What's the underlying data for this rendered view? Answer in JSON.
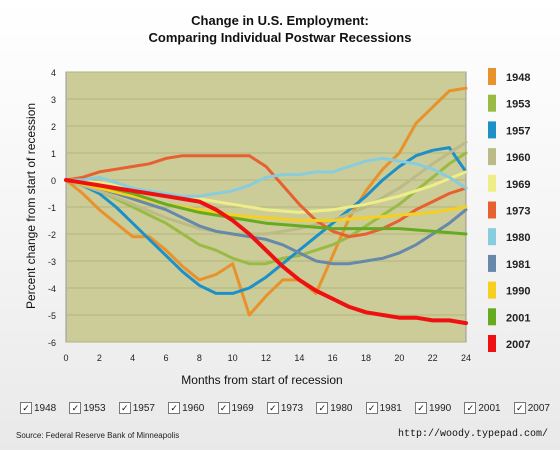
{
  "chart_data": {
    "type": "line",
    "title": "Change in U.S. Employment:",
    "subtitle": "Comparing Individual Postwar Recessions",
    "xlabel": "Months from start of recession",
    "ylabel": "Percent change from start of recession",
    "xlim": [
      0,
      24
    ],
    "ylim": [
      -6,
      4
    ],
    "xticks": [
      "0",
      "2",
      "4",
      "6",
      "8",
      "10",
      "12",
      "14",
      "16",
      "18",
      "20",
      "22",
      "24"
    ],
    "yticks": [
      "4",
      "3",
      "2",
      "1",
      "0",
      "-1",
      "-2",
      "-3",
      "-4",
      "-5",
      "-6"
    ],
    "grid": "horizontal",
    "legend_position": "right",
    "plot_background": "#cccc99",
    "series": [
      {
        "name": "1948",
        "color": "#e8922c",
        "x": [
          0,
          1,
          2,
          3,
          4,
          5,
          6,
          7,
          8,
          9,
          10,
          11,
          12,
          13,
          14,
          15,
          16,
          17,
          18,
          19,
          20,
          21,
          22,
          23,
          24
        ],
        "y": [
          0,
          -0.5,
          -1.1,
          -1.6,
          -2.1,
          -2.1,
          -2.6,
          -3.2,
          -3.7,
          -3.5,
          -3.1,
          -5.0,
          -4.3,
          -3.7,
          -3.7,
          -4.2,
          -2.8,
          -1.4,
          -0.4,
          0.4,
          1.0,
          2.1,
          2.7,
          3.3,
          3.4
        ]
      },
      {
        "name": "1953",
        "color": "#99bb44",
        "x": [
          0,
          1,
          2,
          3,
          4,
          5,
          6,
          7,
          8,
          9,
          10,
          11,
          12,
          13,
          14,
          15,
          16,
          17,
          18,
          19,
          20,
          21,
          22,
          23,
          24
        ],
        "y": [
          0,
          -0.2,
          -0.4,
          -0.7,
          -1.0,
          -1.3,
          -1.6,
          -2.0,
          -2.4,
          -2.6,
          -2.9,
          -3.1,
          -3.1,
          -2.9,
          -2.8,
          -2.6,
          -2.4,
          -2.1,
          -1.7,
          -1.3,
          -0.9,
          -0.4,
          0.1,
          0.6,
          1.0
        ]
      },
      {
        "name": "1957",
        "color": "#1e90c8",
        "x": [
          0,
          1,
          2,
          3,
          4,
          5,
          6,
          7,
          8,
          9,
          10,
          11,
          12,
          13,
          14,
          15,
          16,
          17,
          18,
          19,
          20,
          21,
          22,
          23,
          24
        ],
        "y": [
          0,
          -0.2,
          -0.5,
          -1.0,
          -1.6,
          -2.2,
          -2.8,
          -3.4,
          -3.9,
          -4.2,
          -4.2,
          -4.0,
          -3.6,
          -3.1,
          -2.6,
          -2.1,
          -1.6,
          -1.1,
          -0.6,
          0.0,
          0.5,
          0.9,
          1.1,
          1.2,
          0.3
        ]
      },
      {
        "name": "1960",
        "color": "#bbbb88",
        "x": [
          0,
          2,
          4,
          6,
          8,
          10,
          12,
          14,
          16,
          18,
          20,
          22,
          24
        ],
        "y": [
          0,
          -0.4,
          -0.9,
          -1.4,
          -1.8,
          -2.0,
          -2.0,
          -1.8,
          -1.5,
          -1.0,
          -0.3,
          0.6,
          1.4
        ]
      },
      {
        "name": "1969",
        "color": "#eeee88",
        "x": [
          0,
          2,
          4,
          6,
          8,
          10,
          12,
          14,
          16,
          18,
          20,
          22,
          24
        ],
        "y": [
          0,
          -0.1,
          -0.3,
          -0.5,
          -0.7,
          -0.9,
          -1.1,
          -1.2,
          -1.1,
          -0.9,
          -0.6,
          -0.2,
          0.3
        ]
      },
      {
        "name": "1973",
        "color": "#e86030",
        "x": [
          0,
          1,
          2,
          3,
          4,
          5,
          6,
          7,
          8,
          9,
          10,
          11,
          12,
          13,
          14,
          15,
          16,
          17,
          18,
          19,
          20,
          21,
          22,
          23,
          24
        ],
        "y": [
          0,
          0.1,
          0.3,
          0.4,
          0.5,
          0.6,
          0.8,
          0.9,
          0.9,
          0.9,
          0.9,
          0.9,
          0.5,
          -0.2,
          -0.9,
          -1.5,
          -1.9,
          -2.1,
          -2.0,
          -1.8,
          -1.5,
          -1.1,
          -0.8,
          -0.5,
          -0.3
        ]
      },
      {
        "name": "1980",
        "color": "#88ccdd",
        "x": [
          0,
          1,
          2,
          3,
          4,
          5,
          6,
          7,
          8,
          9,
          10,
          11,
          12,
          13,
          14,
          15,
          16,
          17,
          18,
          19,
          20,
          21,
          22,
          23,
          24
        ],
        "y": [
          0,
          0.0,
          0.1,
          -0.1,
          -0.3,
          -0.4,
          -0.5,
          -0.6,
          -0.6,
          -0.5,
          -0.4,
          -0.2,
          0.1,
          0.2,
          0.2,
          0.3,
          0.3,
          0.5,
          0.7,
          0.8,
          0.7,
          0.6,
          0.4,
          0.1,
          -0.3
        ]
      },
      {
        "name": "1981",
        "color": "#6688aa",
        "x": [
          0,
          1,
          2,
          3,
          4,
          5,
          6,
          7,
          8,
          9,
          10,
          11,
          12,
          13,
          14,
          15,
          16,
          17,
          18,
          19,
          20,
          21,
          22,
          23,
          24
        ],
        "y": [
          0,
          -0.1,
          -0.3,
          -0.5,
          -0.7,
          -0.9,
          -1.1,
          -1.4,
          -1.7,
          -1.9,
          -2.0,
          -2.1,
          -2.2,
          -2.4,
          -2.7,
          -3.0,
          -3.1,
          -3.1,
          -3.0,
          -2.9,
          -2.7,
          -2.4,
          -2.0,
          -1.6,
          -1.1
        ]
      },
      {
        "name": "1990",
        "color": "#f5d020",
        "x": [
          0,
          2,
          4,
          6,
          8,
          10,
          12,
          14,
          16,
          18,
          20,
          22,
          24
        ],
        "y": [
          0,
          -0.3,
          -0.6,
          -0.9,
          -1.1,
          -1.3,
          -1.4,
          -1.5,
          -1.5,
          -1.4,
          -1.3,
          -1.2,
          -1.0
        ]
      },
      {
        "name": "2001",
        "color": "#66aa22",
        "x": [
          0,
          2,
          4,
          6,
          8,
          10,
          12,
          14,
          16,
          18,
          20,
          22,
          24
        ],
        "y": [
          0,
          -0.2,
          -0.5,
          -0.9,
          -1.2,
          -1.4,
          -1.6,
          -1.7,
          -1.8,
          -1.8,
          -1.8,
          -1.9,
          -2.0
        ]
      },
      {
        "name": "2007",
        "color": "#ee1111",
        "x": [
          0,
          1,
          2,
          3,
          4,
          5,
          6,
          7,
          8,
          9,
          10,
          11,
          12,
          13,
          14,
          15,
          16,
          17,
          18,
          19,
          20,
          21,
          22,
          23,
          24
        ],
        "y": [
          0,
          -0.1,
          -0.2,
          -0.3,
          -0.4,
          -0.5,
          -0.6,
          -0.7,
          -0.8,
          -1.1,
          -1.5,
          -2.0,
          -2.6,
          -3.2,
          -3.7,
          -4.1,
          -4.4,
          -4.7,
          -4.9,
          -5.0,
          -5.1,
          -5.1,
          -5.2,
          -5.2,
          -5.3
        ]
      }
    ]
  },
  "checkboxes": [
    "1948",
    "1953",
    "1957",
    "1960",
    "1969",
    "1973",
    "1980",
    "1981",
    "1990",
    "2001",
    "2007"
  ],
  "footer": {
    "source": "Source: Federal Reserve Bank of Minneapolis",
    "url": "http://woody.typepad.com/"
  }
}
